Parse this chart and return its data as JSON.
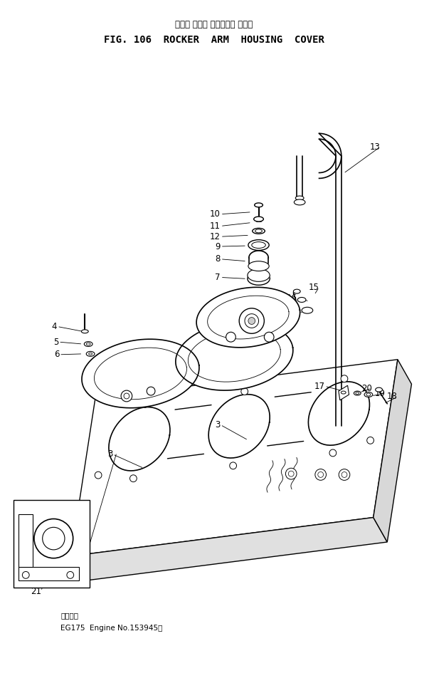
{
  "title_japanese": "ロッカ アーム ハウジング カバー",
  "title_english": "FIG. 106  ROCKER  ARM  HOUSING  COVER",
  "footer_japanese": "適用号機",
  "footer_english": "EG175  Engine No.153945～",
  "bg": "#ffffff",
  "lc": "#000000"
}
